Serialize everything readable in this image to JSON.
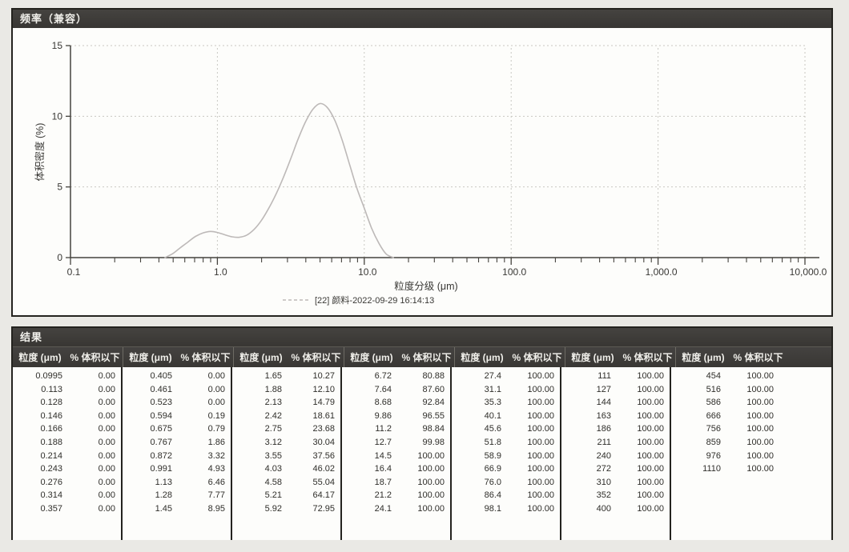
{
  "chart_panel": {
    "title": "频率（兼容）"
  },
  "results_panel": {
    "title": "结果",
    "col_headers": {
      "size": "粒度 (μm)",
      "pct": "% 体积以下"
    },
    "groups": [
      {
        "rows": [
          [
            "0.0995",
            "0.00"
          ],
          [
            "0.113",
            "0.00"
          ],
          [
            "0.128",
            "0.00"
          ],
          [
            "0.146",
            "0.00"
          ],
          [
            "0.166",
            "0.00"
          ],
          [
            "0.188",
            "0.00"
          ],
          [
            "0.214",
            "0.00"
          ],
          [
            "0.243",
            "0.00"
          ],
          [
            "0.276",
            "0.00"
          ],
          [
            "0.314",
            "0.00"
          ],
          [
            "0.357",
            "0.00"
          ]
        ]
      },
      {
        "rows": [
          [
            "0.405",
            "0.00"
          ],
          [
            "0.461",
            "0.00"
          ],
          [
            "0.523",
            "0.00"
          ],
          [
            "0.594",
            "0.19"
          ],
          [
            "0.675",
            "0.79"
          ],
          [
            "0.767",
            "1.86"
          ],
          [
            "0.872",
            "3.32"
          ],
          [
            "0.991",
            "4.93"
          ],
          [
            "1.13",
            "6.46"
          ],
          [
            "1.28",
            "7.77"
          ],
          [
            "1.45",
            "8.95"
          ]
        ]
      },
      {
        "rows": [
          [
            "1.65",
            "10.27"
          ],
          [
            "1.88",
            "12.10"
          ],
          [
            "2.13",
            "14.79"
          ],
          [
            "2.42",
            "18.61"
          ],
          [
            "2.75",
            "23.68"
          ],
          [
            "3.12",
            "30.04"
          ],
          [
            "3.55",
            "37.56"
          ],
          [
            "4.03",
            "46.02"
          ],
          [
            "4.58",
            "55.04"
          ],
          [
            "5.21",
            "64.17"
          ],
          [
            "5.92",
            "72.95"
          ]
        ]
      },
      {
        "rows": [
          [
            "6.72",
            "80.88"
          ],
          [
            "7.64",
            "87.60"
          ],
          [
            "8.68",
            "92.84"
          ],
          [
            "9.86",
            "96.55"
          ],
          [
            "11.2",
            "98.84"
          ],
          [
            "12.7",
            "99.98"
          ],
          [
            "14.5",
            "100.00"
          ],
          [
            "16.4",
            "100.00"
          ],
          [
            "18.7",
            "100.00"
          ],
          [
            "21.2",
            "100.00"
          ],
          [
            "24.1",
            "100.00"
          ]
        ]
      },
      {
        "rows": [
          [
            "27.4",
            "100.00"
          ],
          [
            "31.1",
            "100.00"
          ],
          [
            "35.3",
            "100.00"
          ],
          [
            "40.1",
            "100.00"
          ],
          [
            "45.6",
            "100.00"
          ],
          [
            "51.8",
            "100.00"
          ],
          [
            "58.9",
            "100.00"
          ],
          [
            "66.9",
            "100.00"
          ],
          [
            "76.0",
            "100.00"
          ],
          [
            "86.4",
            "100.00"
          ],
          [
            "98.1",
            "100.00"
          ]
        ]
      },
      {
        "rows": [
          [
            "111",
            "100.00"
          ],
          [
            "127",
            "100.00"
          ],
          [
            "144",
            "100.00"
          ],
          [
            "163",
            "100.00"
          ],
          [
            "186",
            "100.00"
          ],
          [
            "211",
            "100.00"
          ],
          [
            "240",
            "100.00"
          ],
          [
            "272",
            "100.00"
          ],
          [
            "310",
            "100.00"
          ],
          [
            "352",
            "100.00"
          ],
          [
            "400",
            "100.00"
          ]
        ]
      },
      {
        "rows": [
          [
            "454",
            "100.00"
          ],
          [
            "516",
            "100.00"
          ],
          [
            "586",
            "100.00"
          ],
          [
            "666",
            "100.00"
          ],
          [
            "756",
            "100.00"
          ],
          [
            "859",
            "100.00"
          ],
          [
            "976",
            "100.00"
          ],
          [
            "1110",
            "100.00"
          ]
        ]
      }
    ]
  },
  "chart_data": {
    "type": "line",
    "title": "频率（兼容）",
    "xlabel": "粒度分级 (μm)",
    "ylabel": "体积密度 (%)",
    "x_scale": "log",
    "xlim": [
      0.1,
      10000
    ],
    "ylim": [
      0,
      15
    ],
    "y_ticks": [
      0,
      5,
      10,
      15
    ],
    "x_tick_labels": [
      "0.1",
      "1.0",
      "10.0",
      "100.0",
      "1,000.0",
      "10,000.0"
    ],
    "grid": true,
    "legend_position": "bottom",
    "legend": "[22] 颜料-2022-09-29 16:14:13",
    "colors": {
      "curve": "#bdb9b8",
      "grid": "#c9c8c2",
      "axis": "#45433e",
      "text": "#393835"
    },
    "series": [
      {
        "name": "[22] 颜料-2022-09-29 16:14:13",
        "points": [
          [
            0.44,
            0.0
          ],
          [
            0.5,
            0.3
          ],
          [
            0.56,
            0.7
          ],
          [
            0.63,
            1.1
          ],
          [
            0.71,
            1.5
          ],
          [
            0.8,
            1.75
          ],
          [
            0.9,
            1.85
          ],
          [
            1.0,
            1.78
          ],
          [
            1.12,
            1.62
          ],
          [
            1.26,
            1.47
          ],
          [
            1.41,
            1.44
          ],
          [
            1.58,
            1.58
          ],
          [
            1.78,
            2.0
          ],
          [
            2.0,
            2.65
          ],
          [
            2.24,
            3.5
          ],
          [
            2.51,
            4.5
          ],
          [
            2.82,
            5.7
          ],
          [
            3.16,
            7.0
          ],
          [
            3.55,
            8.4
          ],
          [
            3.98,
            9.6
          ],
          [
            4.47,
            10.5
          ],
          [
            5.01,
            10.9
          ],
          [
            5.62,
            10.6
          ],
          [
            6.31,
            9.7
          ],
          [
            7.08,
            8.3
          ],
          [
            7.94,
            6.6
          ],
          [
            8.91,
            4.9
          ],
          [
            10.0,
            3.5
          ],
          [
            11.2,
            2.1
          ],
          [
            12.6,
            1.0
          ],
          [
            14.1,
            0.25
          ],
          [
            15.8,
            0.0
          ]
        ]
      }
    ]
  }
}
